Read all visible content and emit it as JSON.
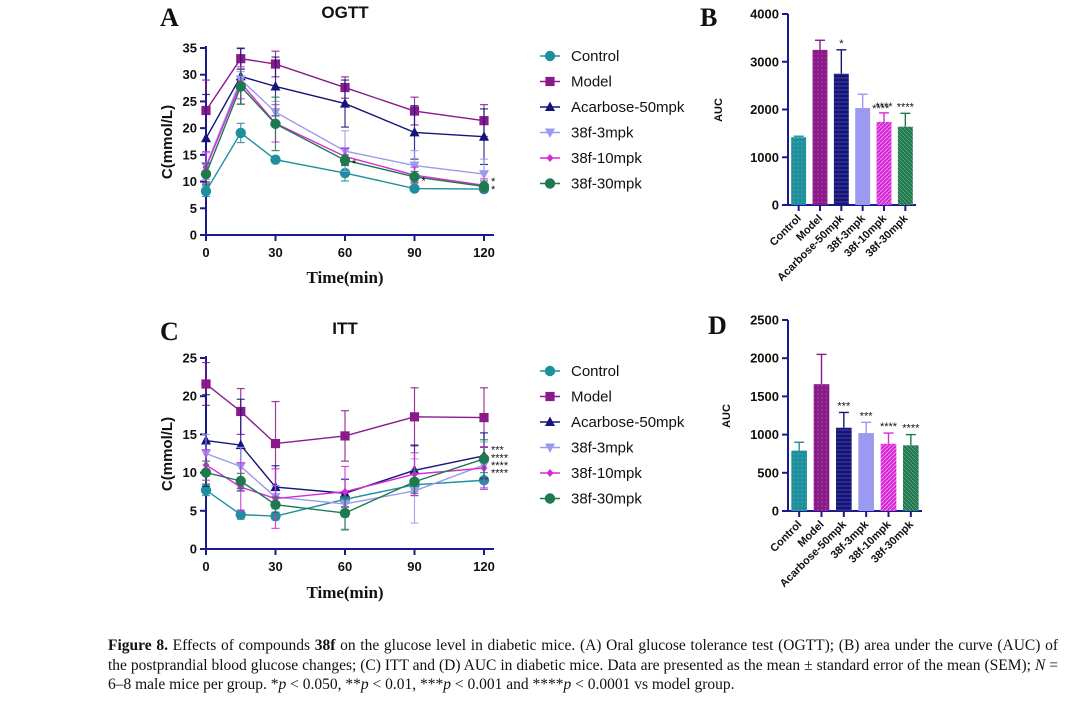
{
  "colors": {
    "axis": "#1a1a8c",
    "Control": "#1e8f9c",
    "Model": "#8a1a8a",
    "Acarbose-50mpk": "#14147a",
    "38f-3mpk": "#9a9af0",
    "38f-10mpk": "#d62ad6",
    "38f-30mpk": "#1e7a4e"
  },
  "legend": [
    "Control",
    "Model",
    "Acarbose-50mpk",
    "38f-3mpk",
    "38f-10mpk",
    "38f-30mpk"
  ],
  "chart_data": [
    {
      "id": "A",
      "type": "line",
      "panel_letter": "A",
      "title": "OGTT",
      "xlabel": "Time(min)",
      "ylabel": "C(mmol/L)",
      "x": [
        0,
        15,
        30,
        60,
        90,
        120
      ],
      "xticks": [
        0,
        30,
        60,
        90,
        120
      ],
      "xlim": [
        0,
        120
      ],
      "ylim": [
        0,
        35
      ],
      "yticks": [
        0,
        5,
        10,
        15,
        20,
        25,
        30,
        35
      ],
      "legend_position": "right",
      "series": [
        {
          "name": "Control",
          "marker": "circle",
          "values": [
            8.2,
            19.1,
            14.1,
            11.6,
            8.7,
            8.6
          ],
          "errors": [
            1.0,
            1.8,
            0.6,
            1.5,
            0.4,
            0.5
          ]
        },
        {
          "name": "Model",
          "marker": "square",
          "values": [
            23.3,
            33.0,
            32.0,
            27.6,
            23.2,
            21.4
          ],
          "errors": [
            5.7,
            2.0,
            2.4,
            2.0,
            2.6,
            3.0
          ]
        },
        {
          "name": "Acarbose-50mpk",
          "marker": "triangle-up",
          "values": [
            18.1,
            29.7,
            27.8,
            24.6,
            19.2,
            18.4
          ],
          "errors": [
            8.2,
            5.2,
            5.5,
            4.4,
            5.0,
            5.2
          ]
        },
        {
          "name": "38f-3mpk",
          "marker": "triangle-down",
          "values": [
            12.9,
            29.1,
            23.0,
            15.7,
            13.0,
            11.4
          ],
          "errors": [
            2.5,
            1.5,
            2.0,
            3.8,
            2.8,
            2.8
          ]
        },
        {
          "name": "38f-10mpk",
          "marker": "diamond",
          "values": [
            12.6,
            28.5,
            20.9,
            14.7,
            11.2,
            9.3
          ],
          "errors": [
            3.0,
            3.0,
            3.5,
            1.5,
            1.5,
            1.2
          ]
        },
        {
          "name": "38f-30mpk",
          "marker": "circle",
          "values": [
            11.4,
            27.8,
            20.8,
            14.0,
            10.9,
            9.1
          ],
          "errors": [
            2.0,
            3.3,
            5.0,
            1.0,
            1.0,
            1.0
          ]
        }
      ],
      "annotations": [
        {
          "x": 60,
          "y": 13.5,
          "text": "*"
        },
        {
          "x": 90,
          "y": 10.2,
          "text": "*"
        },
        {
          "x": 120,
          "y": 10.1,
          "text": "*"
        },
        {
          "x": 120,
          "y": 8.6,
          "text": "*"
        }
      ]
    },
    {
      "id": "B",
      "type": "bar",
      "panel_letter": "B",
      "title": "",
      "xlabel": "",
      "ylabel": "AUC",
      "categories": [
        "Control",
        "Model",
        "Acarbose-50mpk",
        "38f-3mpk",
        "38f-10mpk",
        "38f-30mpk"
      ],
      "values": [
        1420,
        3250,
        2750,
        2030,
        1740,
        1640
      ],
      "errors": [
        20,
        200,
        500,
        290,
        190,
        280
      ],
      "significance": [
        "",
        "",
        "*",
        "****",
        "****",
        "****"
      ],
      "ylim": [
        0,
        4000
      ],
      "yticks": [
        0,
        1000,
        2000,
        3000,
        4000
      ]
    },
    {
      "id": "C",
      "type": "line",
      "panel_letter": "C",
      "title": "ITT",
      "xlabel": "Time(min)",
      "ylabel": "C(mmol/L)",
      "x": [
        0,
        15,
        30,
        60,
        90,
        120
      ],
      "xticks": [
        0,
        30,
        60,
        90,
        120
      ],
      "xlim": [
        0,
        120
      ],
      "ylim": [
        0,
        25
      ],
      "yticks": [
        0,
        5,
        10,
        15,
        20,
        25
      ],
      "legend_position": "right",
      "series": [
        {
          "name": "Control",
          "marker": "circle",
          "values": [
            7.7,
            4.5,
            4.3,
            6.5,
            8.4,
            9.0
          ],
          "errors": [
            0.7,
            0.6,
            0.5,
            1.0,
            0.8,
            1.0
          ]
        },
        {
          "name": "Model",
          "marker": "square",
          "values": [
            21.6,
            18.0,
            13.8,
            14.8,
            17.3,
            17.2
          ],
          "errors": [
            2.8,
            3.0,
            5.5,
            3.3,
            3.8,
            3.9
          ]
        },
        {
          "name": "Acarbose-50mpk",
          "marker": "triangle-up",
          "values": [
            14.2,
            13.6,
            8.1,
            7.3,
            10.3,
            12.2
          ],
          "errors": [
            6.0,
            6.0,
            2.8,
            1.8,
            3.3,
            3.0
          ]
        },
        {
          "name": "38f-3mpk",
          "marker": "triangle-down",
          "values": [
            12.5,
            10.8,
            6.8,
            5.9,
            7.6,
            11.0
          ],
          "errors": [
            2.5,
            2.5,
            1.5,
            3.3,
            4.2,
            3.0
          ]
        },
        {
          "name": "38f-10mpk",
          "marker": "diamond",
          "values": [
            11.0,
            8.1,
            6.6,
            7.5,
            9.8,
            10.6
          ],
          "errors": [
            2.0,
            3.2,
            3.9,
            3.3,
            2.8,
            2.8
          ]
        },
        {
          "name": "38f-30mpk",
          "marker": "circle",
          "values": [
            10.0,
            8.9,
            5.8,
            4.7,
            8.8,
            11.8
          ],
          "errors": [
            1.5,
            1.0,
            1.0,
            2.2,
            1.5,
            2.5
          ]
        }
      ],
      "annotations": [
        {
          "x": 120,
          "y": 13.0,
          "text": "***"
        },
        {
          "x": 120,
          "y": 12.0,
          "text": "****"
        },
        {
          "x": 120,
          "y": 11.0,
          "text": "****"
        },
        {
          "x": 120,
          "y": 10.0,
          "text": "****"
        }
      ]
    },
    {
      "id": "D",
      "type": "bar",
      "panel_letter": "D",
      "title": "",
      "xlabel": "",
      "ylabel": "AUC",
      "categories": [
        "Control",
        "Model",
        "Acarbose-50mpk",
        "38f-3mpk",
        "38f-10mpk",
        "38f-30mpk"
      ],
      "values": [
        790,
        1660,
        1090,
        1020,
        880,
        860
      ],
      "errors": [
        110,
        390,
        200,
        140,
        140,
        140
      ],
      "significance": [
        "",
        "",
        "***",
        "***",
        "****",
        "****"
      ],
      "ylim": [
        0,
        2500
      ],
      "yticks": [
        0,
        500,
        1000,
        1500,
        2000,
        2500
      ]
    }
  ],
  "caption": {
    "label": "Figure 8.",
    "part1": " Effects of compounds ",
    "compound": "38f",
    "part2": " on the glucose level in diabetic mice. (A) Oral glucose tolerance test (OGTT); (B) area under the curve (AUC) of the postprandial blood glucose changes; (C) ITT and (D) AUC in diabetic mice. Data are presented as the mean ± standard error of the mean (SEM); ",
    "n_label": "N",
    "part3": " = 6–8 male mice per group. *",
    "p1": "p",
    "part4": " < 0.050, **",
    "p2": "p",
    "part5": " < 0.01, ***",
    "p3": "p",
    "part6": " < 0.001 and ****",
    "p4": "p",
    "part7": " < 0.0001 vs model group."
  }
}
